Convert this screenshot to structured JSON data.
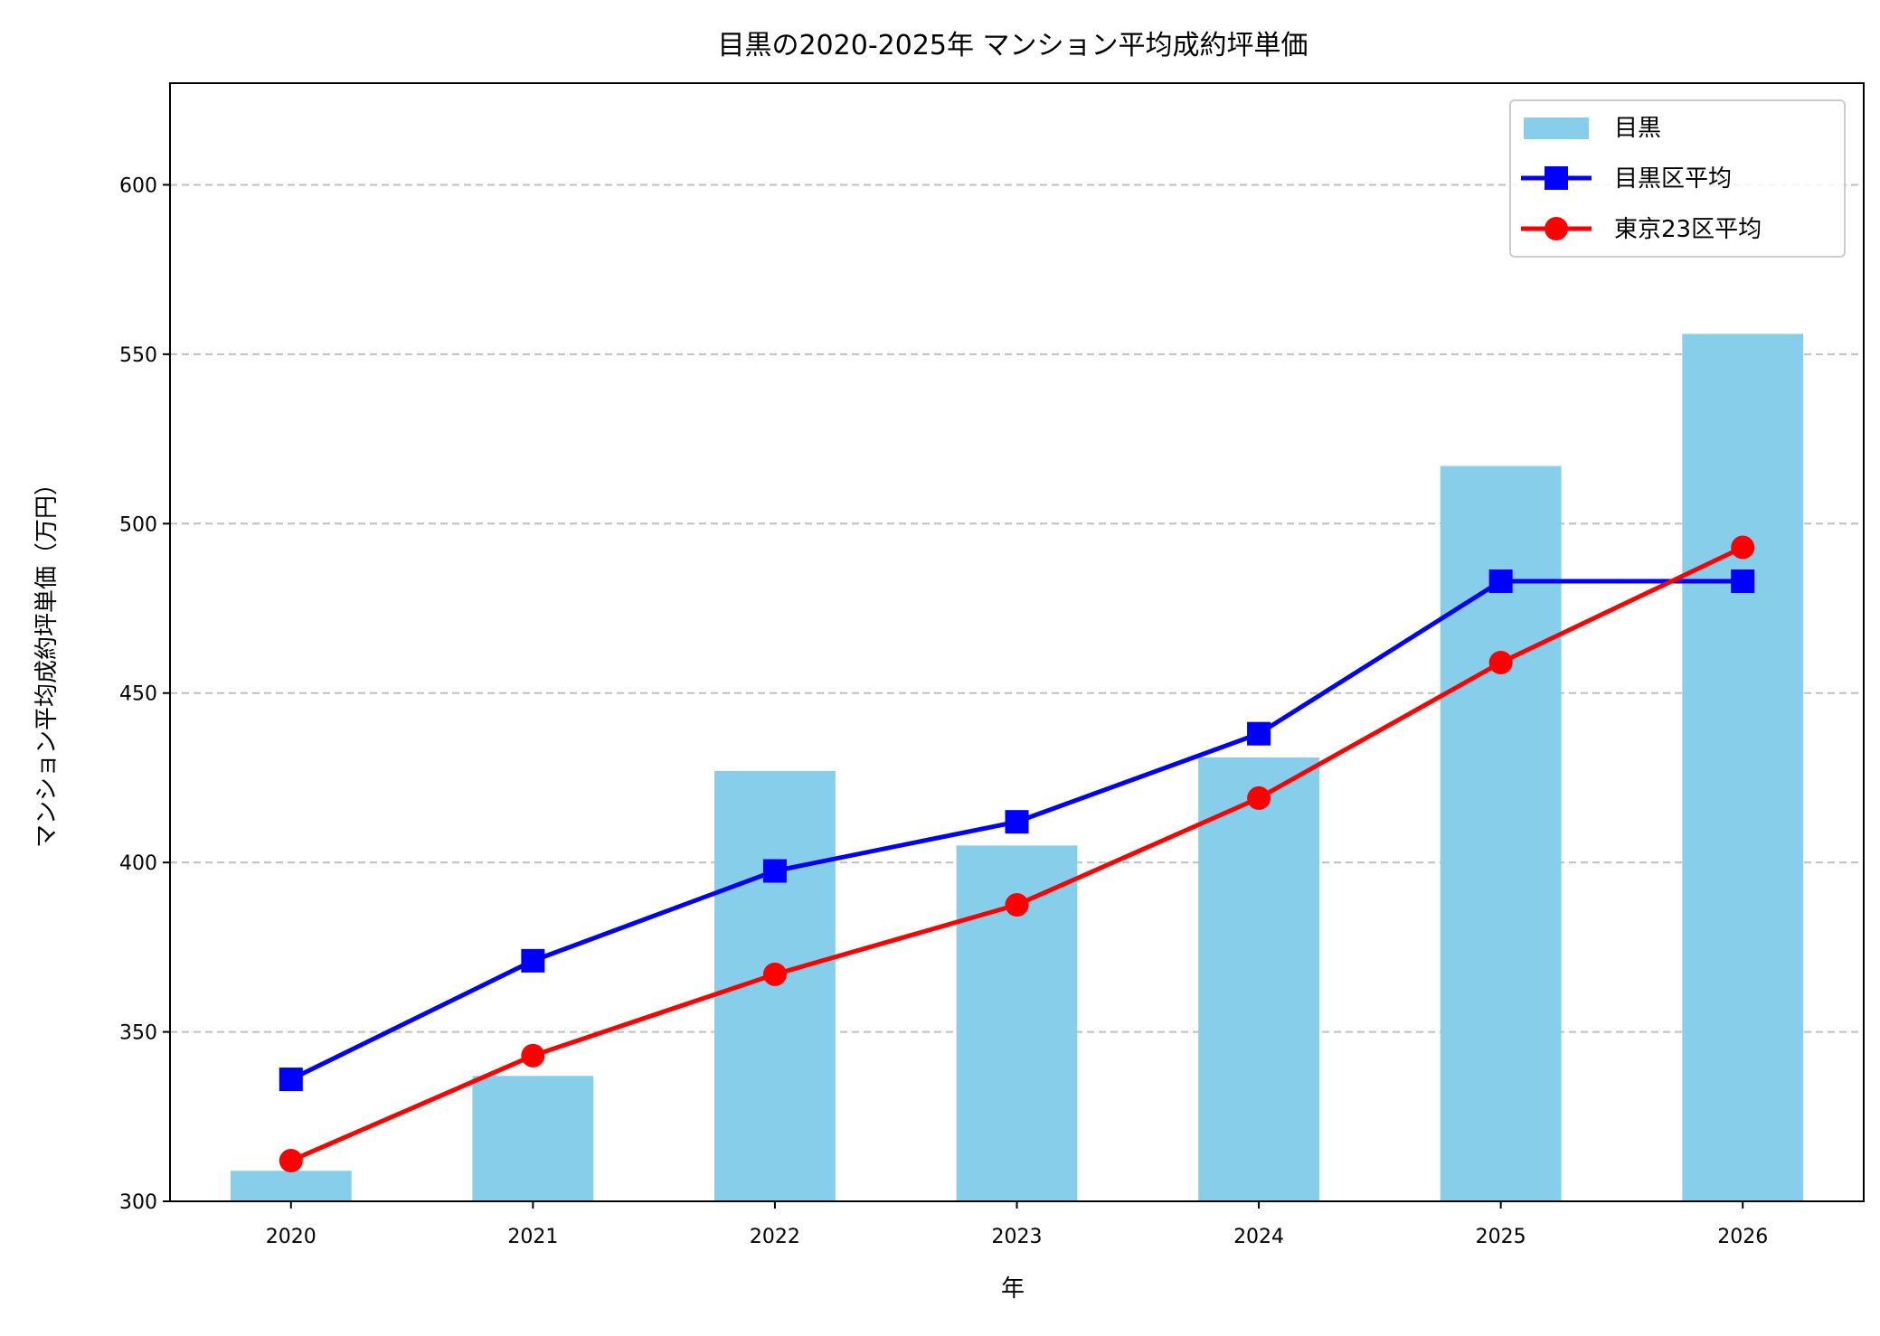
{
  "chart_data": {
    "type": "bar+line",
    "title": "目黒の2020-2025年 マンション平均成約坪単価",
    "xlabel": "年",
    "ylabel": "マンション平均成約坪単価（万円）",
    "categories": [
      "2020",
      "2021",
      "2022",
      "2023",
      "2024",
      "2025",
      "2026"
    ],
    "ylim": [
      300,
      630
    ],
    "yticks": [
      300,
      350,
      400,
      450,
      500,
      550,
      600
    ],
    "grid": "y dashed",
    "legend_position": "top-right",
    "series": [
      {
        "name": "目黒",
        "kind": "bar",
        "color": "#87ceeb",
        "values": [
          309,
          337,
          427,
          405,
          431,
          517,
          556
        ]
      },
      {
        "name": "目黒区平均",
        "kind": "line",
        "marker": "square",
        "color": "#0000ff",
        "values": [
          336,
          371,
          397.5,
          412,
          438,
          483,
          483
        ]
      },
      {
        "name": "東京23区平均",
        "kind": "line",
        "marker": "circle",
        "color": "#ff0000",
        "values": [
          312,
          343,
          367,
          387.5,
          419,
          459,
          493
        ]
      }
    ]
  }
}
